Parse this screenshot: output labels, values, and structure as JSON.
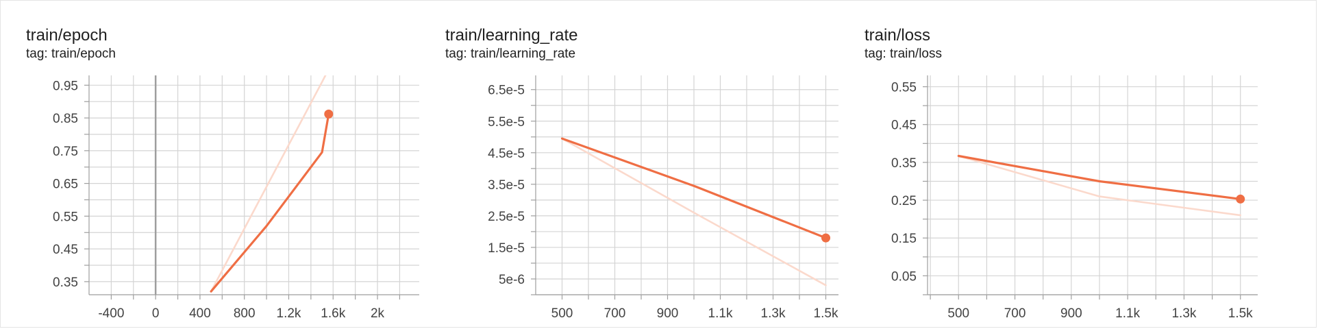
{
  "colors": {
    "series": "#ef6e44",
    "raw": "#fbd9cc",
    "grid": "#d4d4d4",
    "axis": "#9e9e9e",
    "zeroline": "#9e9e9e"
  },
  "cards": [
    {
      "title": "train/epoch",
      "subtitle": "tag: train/epoch"
    },
    {
      "title": "train/learning_rate",
      "subtitle": "tag: train/learning_rate"
    },
    {
      "title": "train/loss",
      "subtitle": "tag: train/loss"
    }
  ],
  "chart_data": [
    {
      "type": "line",
      "title": "train/epoch",
      "subtitle": "tag: train/epoch",
      "xlim": [
        -600,
        2500
      ],
      "ylim": [
        0.31,
        0.98
      ],
      "x_ticks": [
        -400,
        0,
        400,
        800,
        1200,
        1600,
        2000
      ],
      "x_tick_labels": [
        "-400",
        "0",
        "400",
        "800",
        "1.2k",
        "1.6k",
        "2k"
      ],
      "y_ticks": [
        0.35,
        0.45,
        0.55,
        0.65,
        0.75,
        0.85,
        0.95
      ],
      "y_tick_labels": [
        "0.35",
        "0.45",
        "0.55",
        "0.65",
        "0.75",
        "0.85",
        "0.95"
      ],
      "zero_line": true,
      "grid": true,
      "series": [
        {
          "role": "smoothed",
          "x": [
            500,
            1000,
            1500,
            1560
          ],
          "y": [
            0.32,
            0.52,
            0.745,
            0.862
          ]
        },
        {
          "role": "raw",
          "x": [
            500,
            1000,
            1500,
            1560
          ],
          "y": [
            0.32,
            0.64,
            0.96,
            0.999
          ]
        }
      ],
      "marker": {
        "x": 1560,
        "y": 0.862
      }
    },
    {
      "type": "line",
      "title": "train/learning_rate",
      "subtitle": "tag: train/learning_rate",
      "xlim": [
        400,
        1600
      ],
      "ylim": [
        0.0,
        6.95e-05
      ],
      "x_ticks": [
        500,
        700,
        900,
        1100,
        1300,
        1500
      ],
      "x_tick_labels": [
        "500",
        "700",
        "900",
        "1.1k",
        "1.3k",
        "1.5k"
      ],
      "y_ticks": [
        5e-06,
        1.5e-05,
        2.5e-05,
        3.5e-05,
        4.5e-05,
        5.5e-05,
        6.5e-05
      ],
      "y_tick_labels": [
        "5e-6",
        "1.5e-5",
        "2.5e-5",
        "3.5e-5",
        "4.5e-5",
        "5.5e-5",
        "6.5e-5"
      ],
      "grid": true,
      "series": [
        {
          "role": "smoothed",
          "x": [
            500,
            1000,
            1500
          ],
          "y": [
            4.95e-05,
            3.45e-05,
            1.8e-05
          ]
        },
        {
          "role": "raw",
          "x": [
            500,
            1000,
            1500
          ],
          "y": [
            4.95e-05,
            2.6e-05,
            3e-06
          ]
        }
      ],
      "marker": {
        "x": 1500,
        "y": 1.8e-05
      }
    },
    {
      "type": "line",
      "title": "train/loss",
      "subtitle": "tag: train/loss",
      "xlim": [
        390,
        1610
      ],
      "ylim": [
        0.0,
        0.58
      ],
      "x_ticks": [
        500,
        700,
        900,
        1100,
        1300,
        1500
      ],
      "x_tick_labels": [
        "500",
        "700",
        "900",
        "1.1k",
        "1.3k",
        "1.5k"
      ],
      "y_ticks": [
        0.05,
        0.15,
        0.25,
        0.35,
        0.45,
        0.55
      ],
      "y_tick_labels": [
        "0.05",
        "0.15",
        "0.25",
        "0.35",
        "0.45",
        "0.55"
      ],
      "grid": true,
      "series": [
        {
          "role": "smoothed",
          "x": [
            500,
            1000,
            1500
          ],
          "y": [
            0.367,
            0.3,
            0.253
          ]
        },
        {
          "role": "raw",
          "x": [
            500,
            1000,
            1500
          ],
          "y": [
            0.367,
            0.26,
            0.21
          ]
        }
      ],
      "marker": {
        "x": 1500,
        "y": 0.253
      }
    }
  ]
}
